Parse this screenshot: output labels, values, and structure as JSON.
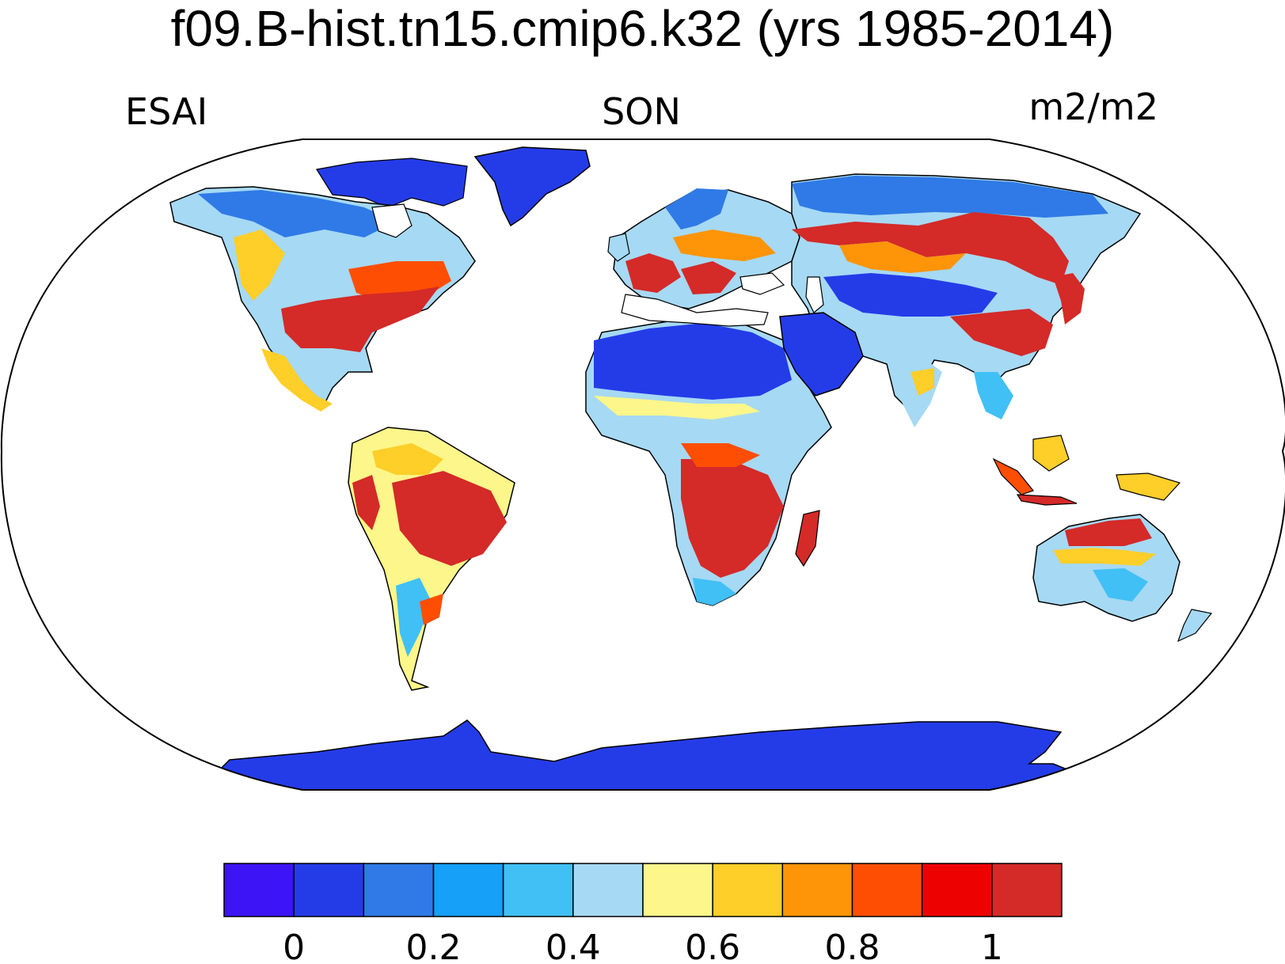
{
  "title": "f09.B-hist.tn15.cmip6.k32 (yrs 1985-2014)",
  "left_label": "ESAI",
  "center_label": "SON",
  "right_label": "m2/m2",
  "colorbar": {
    "colors": [
      "#3c14f6",
      "#243ce8",
      "#2f7ae6",
      "#16a0f8",
      "#41c0f5",
      "#a6d9f3",
      "#fdf68a",
      "#fece29",
      "#fe9408",
      "#fe4e04",
      "#ee0201",
      "#d42a28"
    ],
    "tick_labels": [
      "0",
      "0.2",
      "0.4",
      "0.6",
      "0.8",
      "1"
    ]
  },
  "colors": {
    "ocean": "#ffffff",
    "outline": "#000000"
  }
}
